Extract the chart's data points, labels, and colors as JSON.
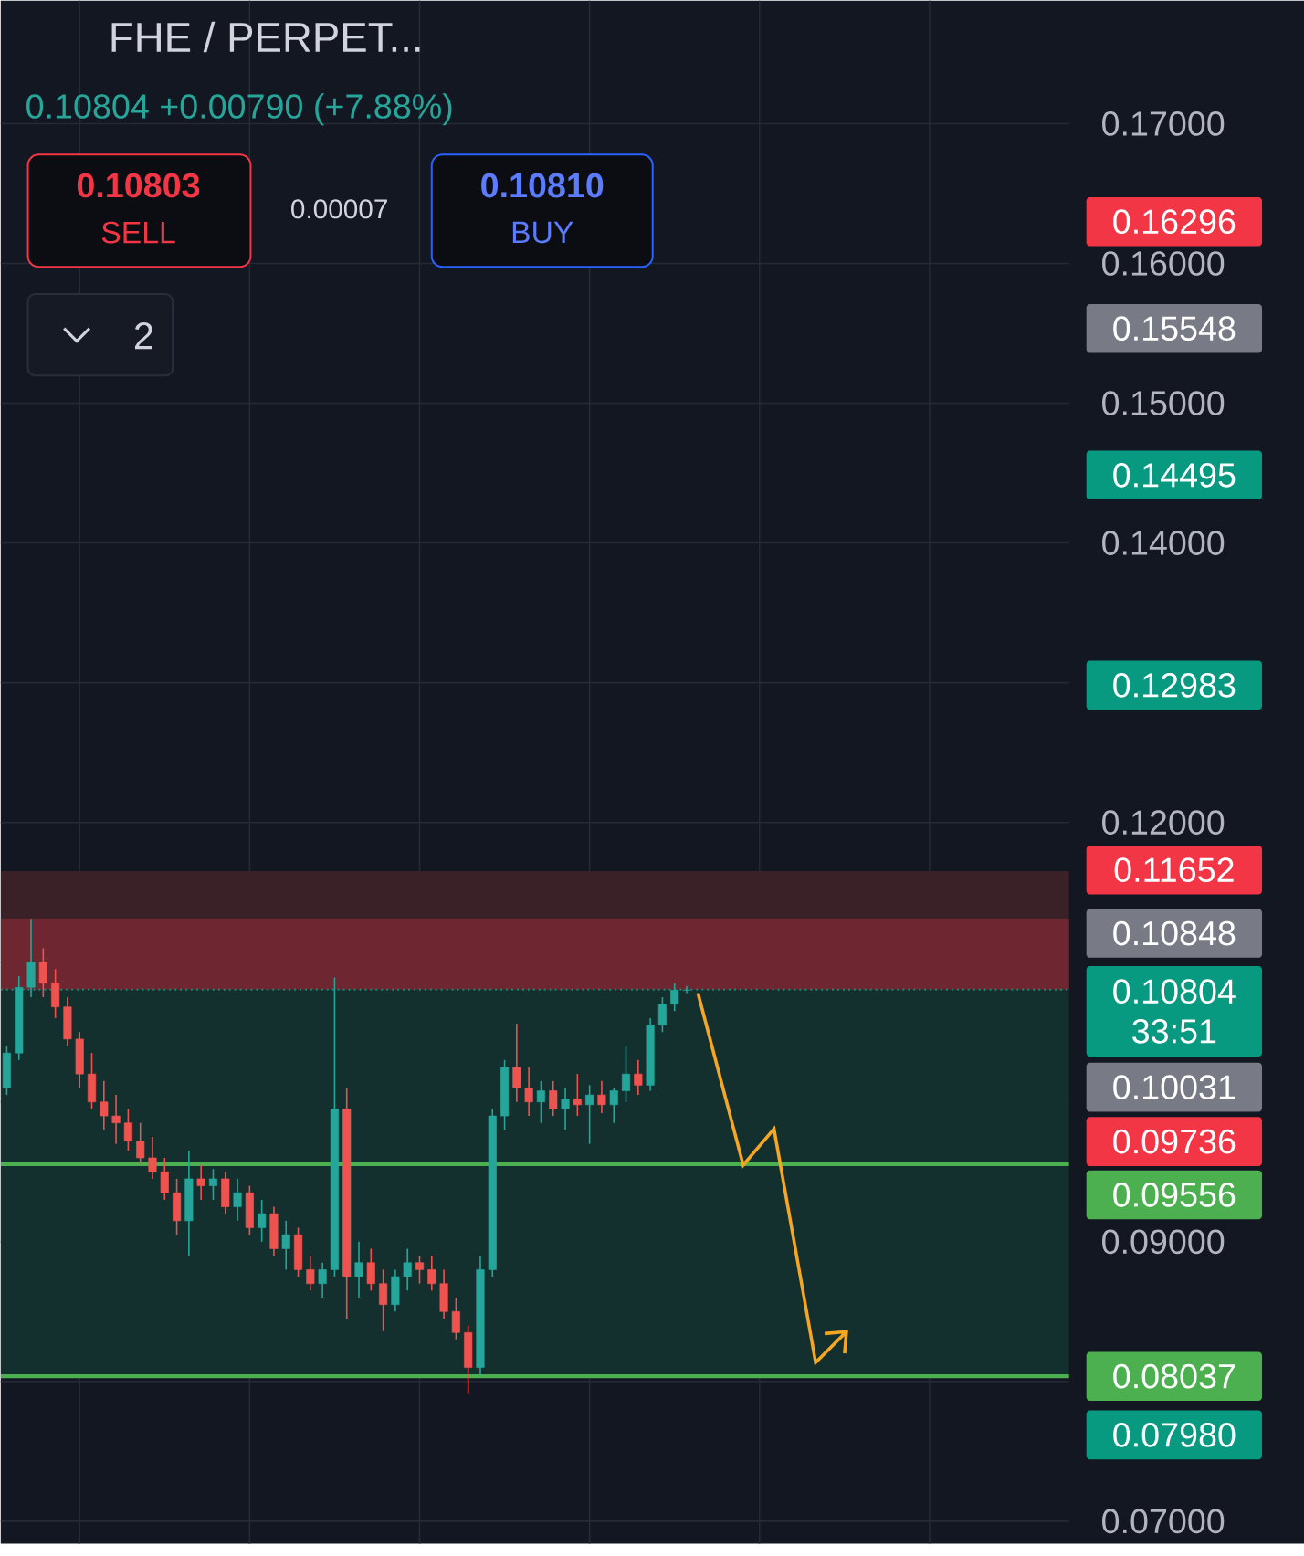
{
  "chart_data": {
    "type": "candlestick",
    "title": "FHE / PERPET...",
    "subtitle": "0.10804 +0.00790 (+7.88%)",
    "categories": [
      null,
      null,
      null,
      null,
      null,
      null,
      null,
      null,
      null,
      null,
      null,
      null,
      null,
      null,
      null,
      null,
      null,
      null,
      null,
      null,
      null,
      null,
      null,
      null,
      null,
      null,
      null,
      null,
      null,
      null,
      null,
      null,
      null,
      null,
      null,
      null,
      null,
      null,
      null,
      null,
      null,
      null,
      null,
      null,
      null,
      null,
      null,
      null,
      null,
      null,
      null,
      null,
      null,
      null,
      null,
      null,
      null,
      null,
      null,
      null,
      null,
      null,
      null,
      null,
      null,
      null,
      null,
      null,
      null,
      null,
      null,
      null,
      null,
      null,
      null,
      null,
      null,
      null,
      null,
      null,
      null,
      null,
      null,
      null,
      null,
      null,
      null,
      null
    ],
    "ohlc": [
      [
        0.101,
        0.104,
        0.1005,
        0.1035
      ],
      [
        0.1035,
        0.109,
        0.103,
        0.1082
      ],
      [
        0.1082,
        0.1131,
        0.1075,
        0.11
      ],
      [
        0.11,
        0.111,
        0.1075,
        0.1085
      ],
      [
        0.1085,
        0.1095,
        0.106,
        0.1068
      ],
      [
        0.1068,
        0.1075,
        0.104,
        0.1045
      ],
      [
        0.1045,
        0.105,
        0.101,
        0.102
      ],
      [
        0.102,
        0.1035,
        0.0995,
        0.1
      ],
      [
        0.1,
        0.1015,
        0.098,
        0.099
      ],
      [
        0.099,
        0.1005,
        0.097,
        0.0985
      ],
      [
        0.0985,
        0.0995,
        0.0965,
        0.0972
      ],
      [
        0.0972,
        0.0985,
        0.0955,
        0.096
      ],
      [
        0.096,
        0.0975,
        0.0945,
        0.095
      ],
      [
        0.095,
        0.096,
        0.093,
        0.0935
      ],
      [
        0.0935,
        0.0945,
        0.0905,
        0.0915
      ],
      [
        0.0915,
        0.0965,
        0.089,
        0.0945
      ],
      [
        0.0945,
        0.0955,
        0.093,
        0.094
      ],
      [
        0.094,
        0.0952,
        0.093,
        0.0945
      ],
      [
        0.0945,
        0.095,
        0.092,
        0.0925
      ],
      [
        0.0925,
        0.0945,
        0.0915,
        0.0935
      ],
      [
        0.0935,
        0.094,
        0.0905,
        0.091
      ],
      [
        0.091,
        0.093,
        0.09,
        0.092
      ],
      [
        0.092,
        0.0925,
        0.089,
        0.0895
      ],
      [
        0.0895,
        0.0915,
        0.088,
        0.0905
      ],
      [
        0.0905,
        0.091,
        0.0875,
        0.088
      ],
      [
        0.088,
        0.089,
        0.0865,
        0.087
      ],
      [
        0.087,
        0.0885,
        0.086,
        0.088
      ],
      [
        0.088,
        0.1089,
        0.0875,
        0.0995
      ],
      [
        0.0995,
        0.101,
        0.0845,
        0.0875
      ],
      [
        0.0875,
        0.09,
        0.086,
        0.0885
      ],
      [
        0.0885,
        0.0895,
        0.0865,
        0.087
      ],
      [
        0.087,
        0.088,
        0.0836,
        0.0855
      ],
      [
        0.0855,
        0.088,
        0.085,
        0.0875
      ],
      [
        0.0875,
        0.0895,
        0.0865,
        0.0885
      ],
      [
        0.0885,
        0.089,
        0.087,
        0.088
      ],
      [
        0.088,
        0.089,
        0.0865,
        0.087
      ],
      [
        0.087,
        0.088,
        0.0845,
        0.085
      ],
      [
        0.085,
        0.086,
        0.083,
        0.0835
      ],
      [
        0.0835,
        0.084,
        0.0791,
        0.081
      ],
      [
        0.081,
        0.089,
        0.0805,
        0.088
      ],
      [
        0.088,
        0.0995,
        0.0875,
        0.099
      ],
      [
        0.099,
        0.103,
        0.098,
        0.1025
      ],
      [
        0.1025,
        0.1056,
        0.1,
        0.101
      ],
      [
        0.101,
        0.1025,
        0.099,
        0.1
      ],
      [
        0.1,
        0.1015,
        0.0985,
        0.1008
      ],
      [
        0.1008,
        0.1015,
        0.099,
        0.0995
      ],
      [
        0.0995,
        0.101,
        0.098,
        0.1002
      ],
      [
        0.1002,
        0.102,
        0.099,
        0.0998
      ],
      [
        0.0998,
        0.1012,
        0.097,
        0.1005
      ],
      [
        0.1005,
        0.1015,
        0.0992,
        0.0998
      ],
      [
        0.0998,
        0.101,
        0.0985,
        0.1008
      ],
      [
        0.1008,
        0.104,
        0.1,
        0.102
      ],
      [
        0.102,
        0.103,
        0.1005,
        0.1012
      ],
      [
        0.1012,
        0.106,
        0.1008,
        0.1055
      ],
      [
        0.1055,
        0.1075,
        0.105,
        0.107
      ],
      [
        0.107,
        0.1085,
        0.1065,
        0.108
      ],
      [
        0.108,
        0.1083,
        0.1078,
        0.108
      ],
      null,
      null,
      null,
      null,
      null,
      null,
      null,
      null,
      null,
      null,
      null,
      null,
      null,
      null,
      null,
      null,
      null,
      null,
      null,
      null,
      null,
      null,
      null,
      null,
      null,
      null,
      null,
      null,
      null,
      null,
      null
    ],
    "ylim": [
      0.0684,
      0.1788
    ],
    "yticks": [
      {
        "value": 0.07,
        "label": "0.07000"
      },
      {
        "value": 0.08,
        "label": null
      },
      {
        "value": 0.09,
        "label": "0.09000"
      },
      {
        "value": 0.1,
        "label": null
      },
      {
        "value": 0.11,
        "label": null
      },
      {
        "value": 0.12,
        "label": "0.12000"
      },
      {
        "value": 0.13,
        "label": null
      },
      {
        "value": 0.14,
        "label": "0.14000"
      },
      {
        "value": 0.15,
        "label": "0.15000"
      },
      {
        "value": 0.16,
        "label": "0.16000"
      },
      {
        "value": 0.17,
        "label": "0.17000"
      }
    ],
    "grid": true,
    "tick_labels": "y",
    "bands": [
      {
        "axis": "y",
        "from": 0.08037,
        "to": 0.10804,
        "color": "#13302f"
      },
      {
        "axis": "y",
        "from": 0.10804,
        "to": 0.11652,
        "color": "#3a2128"
      },
      {
        "axis": "y",
        "from": 0.10804,
        "to": 0.11313,
        "color": "#6e2631"
      }
    ],
    "ref_lines": [
      {
        "axis": "y",
        "value": 0.10804,
        "label": "0.10804 33:51",
        "color": "#089981",
        "line_style": "dotted"
      },
      {
        "axis": "y",
        "value": 0.09556,
        "label": "0.09556",
        "color": "#4caf50",
        "line_style": "solid"
      },
      {
        "axis": "y",
        "value": 0.08037,
        "label": "0.08037",
        "color": "#4caf50",
        "line_style": "solid"
      }
    ],
    "annotations": [
      "0.10803",
      "SELL",
      "0.00007",
      "0.10810",
      "BUY",
      "2",
      "0.16296",
      "0.15548",
      "0.14495",
      "0.12983",
      "0.11652",
      "0.10848",
      "0.10031",
      "0.09736",
      "0.07980"
    ]
  }
}
